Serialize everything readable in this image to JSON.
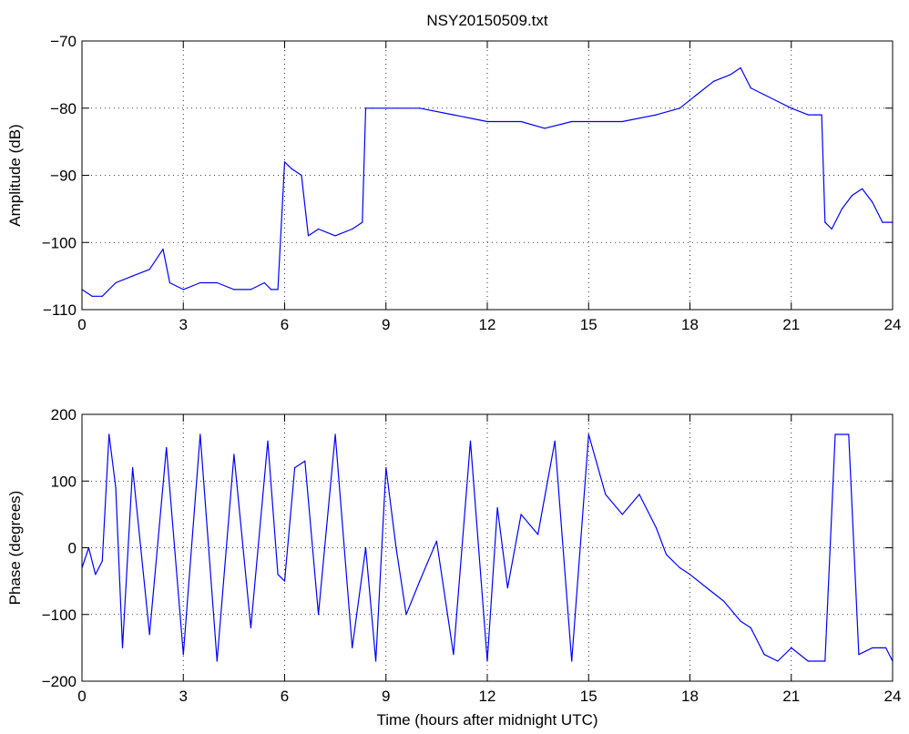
{
  "chart_data": [
    {
      "type": "line",
      "title": "NSY20150509.txt",
      "xlabel": "",
      "ylabel": "Amplitude (dB)",
      "xlim": [
        0,
        24
      ],
      "ylim": [
        -110,
        -70
      ],
      "xticks": [
        0,
        3,
        6,
        9,
        12,
        15,
        18,
        21,
        24
      ],
      "yticks": [
        -110,
        -100,
        -90,
        -80,
        -70
      ],
      "ytick_labels": [
        "−110",
        "−100",
        "−90",
        "−80",
        "−70"
      ],
      "grid": true,
      "color": "#0000ff",
      "series": [
        {
          "x": [
            0,
            0.3,
            0.6,
            1.0,
            1.5,
            2.0,
            2.4,
            2.6,
            3.0,
            3.5,
            4.0,
            4.5,
            5.0,
            5.4,
            5.6,
            5.8,
            6.0,
            6.2,
            6.5,
            6.7,
            7.0,
            7.5,
            8.0,
            8.3,
            8.4,
            8.6,
            9.0,
            10,
            11,
            12,
            13,
            13.7,
            14.5,
            15,
            16,
            17,
            17.7,
            18.2,
            18.7,
            19.2,
            19.5,
            19.8,
            20.2,
            20.6,
            21.0,
            21.5,
            21.9,
            22.0,
            22.2,
            22.5,
            22.8,
            23.1,
            23.4,
            23.7,
            24.0
          ],
          "y": [
            -107,
            -108,
            -108,
            -106,
            -105,
            -104,
            -101,
            -106,
            -107,
            -106,
            -106,
            -107,
            -107,
            -106,
            -107,
            -107,
            -88,
            -89,
            -90,
            -99,
            -98,
            -99,
            -98,
            -97,
            -80,
            -80,
            -80,
            -80,
            -81,
            -82,
            -82,
            -83,
            -82,
            -82,
            -82,
            -81,
            -80,
            -78,
            -76,
            -75,
            -74,
            -77,
            -78,
            -79,
            -80,
            -81,
            -81,
            -97,
            -98,
            -95,
            -93,
            -92,
            -94,
            -97,
            -97
          ]
        }
      ]
    },
    {
      "type": "line",
      "title": "",
      "xlabel": "Time (hours after midnight UTC)",
      "ylabel": "Phase (degrees)",
      "xlim": [
        0,
        24
      ],
      "ylim": [
        -200,
        200
      ],
      "xticks": [
        0,
        3,
        6,
        9,
        12,
        15,
        18,
        21,
        24
      ],
      "yticks": [
        -200,
        -100,
        0,
        100,
        200
      ],
      "ytick_labels": [
        "−200",
        "−100",
        "0",
        "100",
        "200"
      ],
      "grid": true,
      "color": "#0000ff",
      "series": [
        {
          "x": [
            0,
            0.2,
            0.4,
            0.6,
            0.8,
            1.0,
            1.2,
            1.5,
            2.0,
            2.5,
            3.0,
            3.5,
            4.0,
            4.5,
            5.0,
            5.5,
            5.8,
            6.0,
            6.3,
            6.6,
            7.0,
            7.5,
            8.0,
            8.4,
            8.7,
            9.0,
            9.3,
            9.6,
            10.0,
            10.5,
            11.0,
            11.5,
            12.0,
            12.3,
            12.6,
            13.0,
            13.5,
            14.0,
            14.5,
            15.0,
            15.5,
            16.0,
            16.5,
            17.0,
            17.3,
            17.7,
            18.0,
            18.5,
            19.0,
            19.5,
            19.8,
            20.2,
            20.6,
            21.0,
            21.5,
            22.0,
            22.3,
            22.7,
            23.0,
            23.4,
            23.8,
            24.0
          ],
          "y": [
            -30,
            0,
            -40,
            -20,
            170,
            90,
            -150,
            120,
            -130,
            150,
            -160,
            170,
            -170,
            140,
            -120,
            160,
            -40,
            -50,
            120,
            130,
            -100,
            170,
            -150,
            0,
            -170,
            120,
            0,
            -100,
            -50,
            10,
            -160,
            160,
            -170,
            60,
            -60,
            50,
            20,
            160,
            -170,
            170,
            80,
            50,
            80,
            30,
            -10,
            -30,
            -40,
            -60,
            -80,
            -110,
            -120,
            -160,
            -170,
            -150,
            -170,
            -170,
            170,
            170,
            -160,
            -150,
            -150,
            -170
          ]
        }
      ]
    }
  ]
}
